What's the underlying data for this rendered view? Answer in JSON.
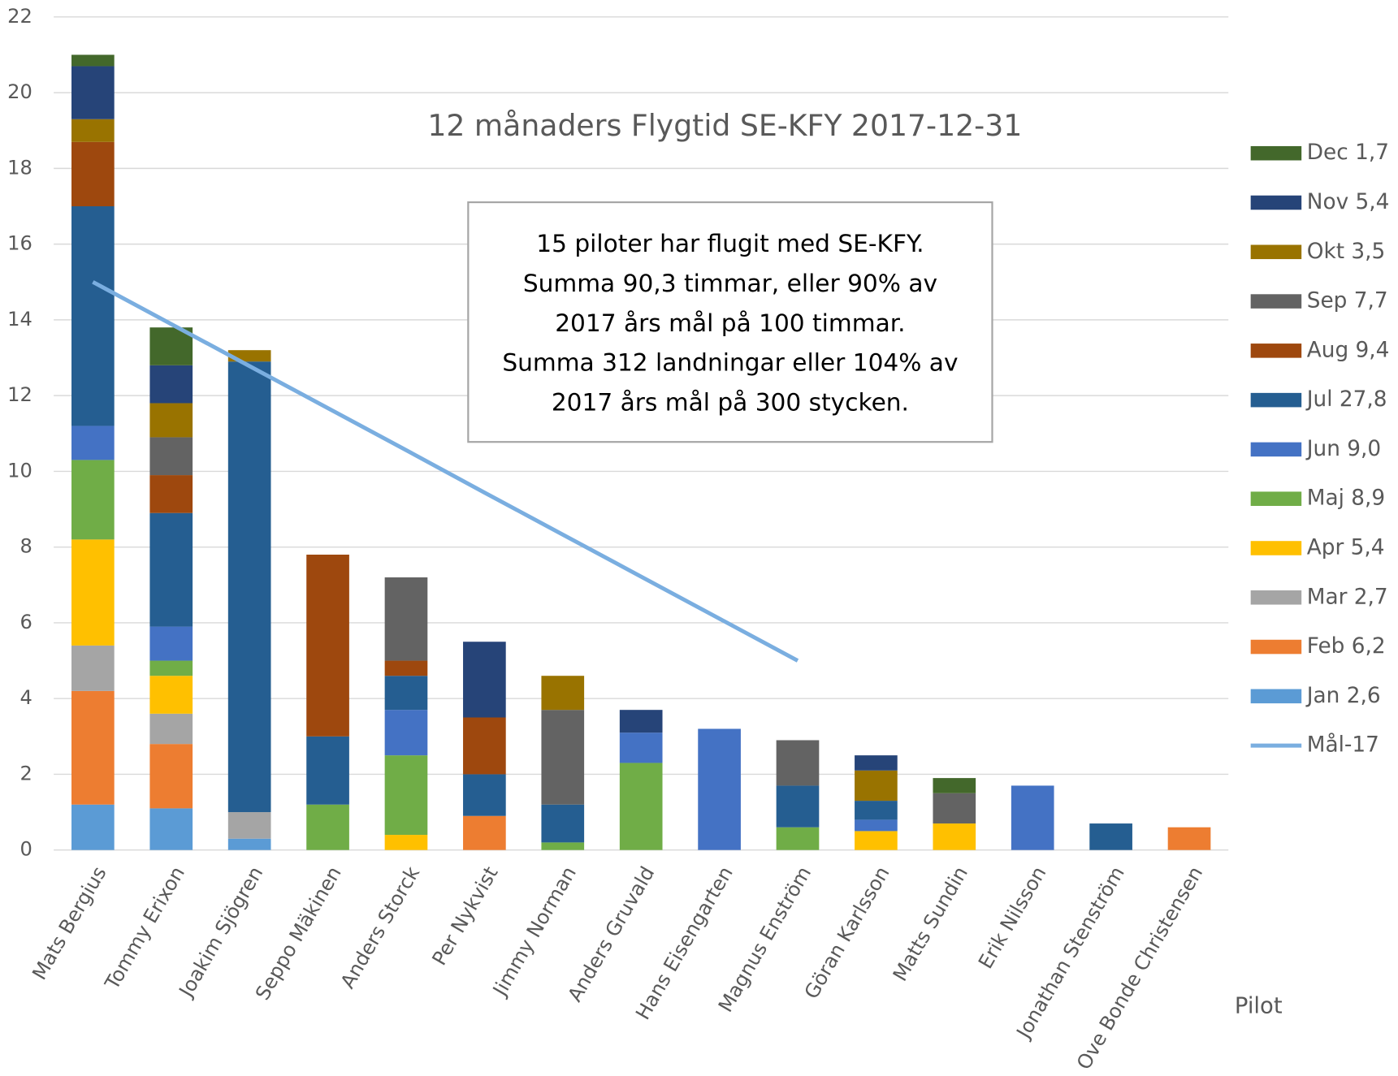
{
  "chart_data": {
    "type": "stacked_bar",
    "title": "12 månaders Flygtid SE-KFY 2017-12-31",
    "x_label": "Pilot",
    "annotation": [
      "15 piloter har flugit med SE-KFY.",
      "Summa 90,3 timmar, eller 90% av",
      "2017 års mål på 100 timmar.",
      "Summa 312 landningar eller 104% av",
      "2017 års mål på 300 stycken."
    ],
    "categories": [
      "Mats Bergius",
      "Tommy Erixon",
      "Joakim Sjögren",
      "Seppo Mäkinen",
      "Anders Storck",
      "Per Nykvist",
      "Jimmy Norman",
      "Anders Gruvald",
      "Hans Eisengarten",
      "Magnus Enström",
      "Göran Karlsson",
      "Matts Sundin",
      "Erik Nilsson",
      "Jonathan Stenström",
      "Ove Bonde Christensen"
    ],
    "series": [
      {
        "name": "Jan 2,6",
        "color": "#5b9bd5",
        "values": [
          1.2,
          1.1,
          0.3,
          0,
          0,
          0,
          0,
          0,
          0,
          0,
          0,
          0,
          0,
          0,
          0
        ]
      },
      {
        "name": "Feb 6,2",
        "color": "#ed7d31",
        "values": [
          3.0,
          1.7,
          0,
          0,
          0,
          0.9,
          0,
          0,
          0,
          0,
          0,
          0,
          0,
          0,
          0.6
        ]
      },
      {
        "name": "Mar 2,7",
        "color": "#a5a5a5",
        "values": [
          1.2,
          0.8,
          0.7,
          0,
          0,
          0,
          0,
          0,
          0,
          0,
          0,
          0,
          0,
          0,
          0
        ]
      },
      {
        "name": "Apr 5,4",
        "color": "#ffc000",
        "values": [
          2.8,
          1.0,
          0,
          0,
          0.4,
          0,
          0,
          0,
          0,
          0,
          0.5,
          0.7,
          0,
          0,
          0
        ]
      },
      {
        "name": "Maj 8,9",
        "color": "#70ad47",
        "values": [
          2.1,
          0.4,
          0,
          1.2,
          2.1,
          0,
          0.2,
          2.3,
          0,
          0.6,
          0,
          0,
          0,
          0,
          0
        ]
      },
      {
        "name": "Jun 9,0",
        "color": "#4472c4",
        "values": [
          0.9,
          0.9,
          0,
          0,
          1.2,
          0,
          0,
          0.8,
          3.2,
          0,
          0.3,
          0,
          1.7,
          0,
          0
        ]
      },
      {
        "name": "Jul 27,8",
        "color": "#255e91",
        "values": [
          5.8,
          3.0,
          11.9,
          1.8,
          0.9,
          1.1,
          1.0,
          0,
          0,
          1.1,
          0.5,
          0,
          0,
          0.7,
          0
        ]
      },
      {
        "name": "Aug 9,4",
        "color": "#9e480e",
        "values": [
          1.7,
          1.0,
          0,
          4.8,
          0.4,
          1.5,
          0,
          0,
          0,
          0,
          0,
          0,
          0,
          0,
          0
        ]
      },
      {
        "name": "Sep 7,7",
        "color": "#636363",
        "values": [
          0,
          1.0,
          0,
          0,
          2.2,
          0,
          2.5,
          0,
          0,
          1.2,
          0,
          0.8,
          0,
          0,
          0
        ]
      },
      {
        "name": "Okt 3,5",
        "color": "#997300",
        "values": [
          0.6,
          0.9,
          0.3,
          0,
          0,
          0,
          0.9,
          0,
          0,
          0,
          0.8,
          0,
          0,
          0,
          0
        ]
      },
      {
        "name": "Nov 5,4",
        "color": "#264478",
        "values": [
          1.4,
          1.0,
          0,
          0,
          0,
          2.0,
          0,
          0.6,
          0,
          0,
          0.4,
          0,
          0,
          0,
          0
        ]
      },
      {
        "name": "Dec 1,7",
        "color": "#43682b",
        "values": [
          0.3,
          1.0,
          0,
          0,
          0,
          0,
          0,
          0,
          0,
          0,
          0,
          0.4,
          0,
          0,
          0
        ]
      }
    ],
    "line": {
      "name": "Mål-17",
      "color": "#7aaee0",
      "values": [
        15,
        13.89,
        12.78,
        11.67,
        10.56,
        9.44,
        8.33,
        7.22,
        6.11,
        5,
        null,
        null,
        null,
        null,
        null
      ]
    },
    "ylim": [
      0,
      22
    ],
    "yticks": [
      0,
      2,
      4,
      6,
      8,
      10,
      12,
      14,
      16,
      18,
      20,
      22
    ],
    "grid": true,
    "legend": "right"
  }
}
